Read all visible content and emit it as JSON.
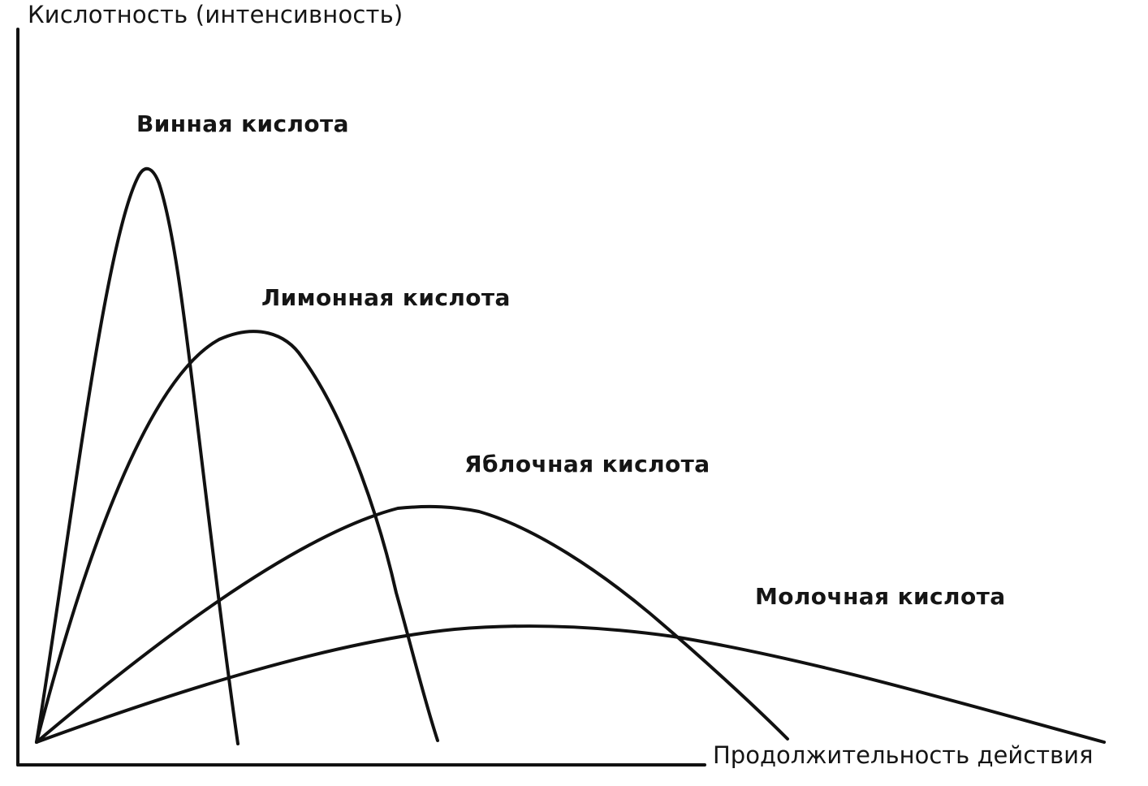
{
  "chart_data": {
    "type": "line",
    "ylabel": "Кислотность (интенсивность)",
    "xlabel": "Продолжительность действия",
    "grid": false,
    "series": [
      {
        "name": "Винная кислота"
      },
      {
        "name": "Лимонная кислота"
      },
      {
        "name": "Яблочная кислота"
      },
      {
        "name": "Молочная кислота"
      }
    ],
    "colors": {
      "axes": "#111111",
      "lines": "#111111",
      "background": "#ffffff"
    }
  }
}
